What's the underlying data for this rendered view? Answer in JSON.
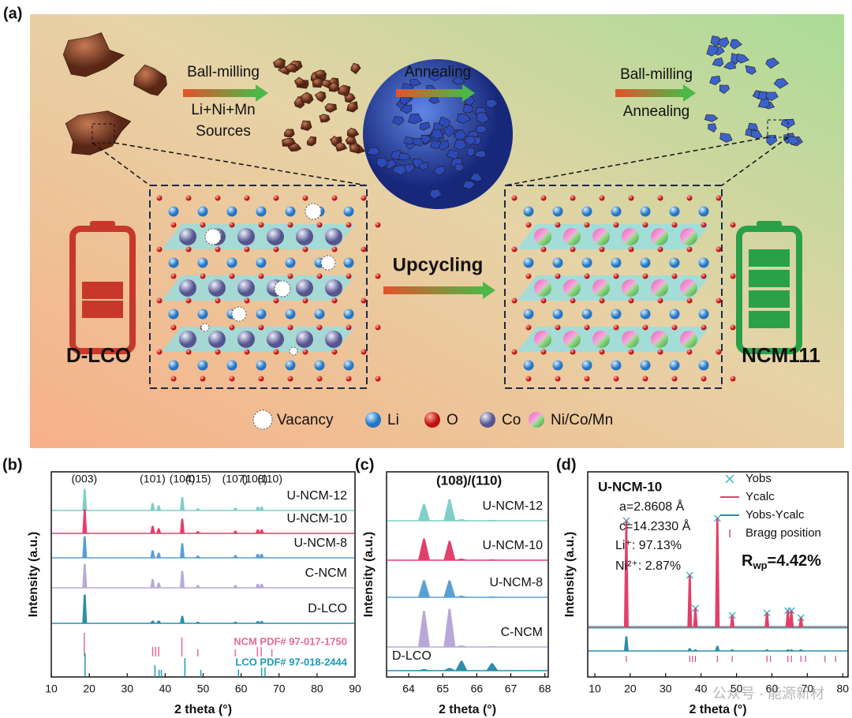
{
  "panel_a": {
    "label": "(a)",
    "steps": [
      {
        "lines": [
          "Ball-milling",
          "Li+Ni+Mn",
          "Sources"
        ]
      },
      {
        "lines": [
          "Annealing"
        ]
      },
      {
        "lines": [
          "Ball-milling",
          "Annealing"
        ]
      }
    ],
    "process": "Upcycling",
    "source": "D-LCO",
    "product": "NCM111",
    "legend": [
      "Vacancy",
      "Li",
      "O",
      "Co",
      "Ni/Co/Mn"
    ]
  },
  "chart_data": [
    {
      "type": "xrd",
      "panel_label": "(b)",
      "x_label": "2 theta (°)",
      "y_label": "Intensity (a.u.)",
      "xlim": [
        10,
        90
      ],
      "xticks": [
        10,
        20,
        30,
        40,
        50,
        60,
        70,
        80,
        90
      ],
      "x": [
        18.8,
        36.7,
        38.3,
        44.5,
        48.6,
        58.5,
        64.4,
        65.4
      ],
      "series": [
        {
          "name": "U-NCM-12",
          "color": "#7fcfc8",
          "values": [
            0.9,
            0.3,
            0.2,
            0.55,
            0.08,
            0.1,
            0.15,
            0.15
          ]
        },
        {
          "name": "U-NCM-10",
          "color": "#e0406a",
          "values": [
            1.0,
            0.3,
            0.2,
            0.6,
            0.08,
            0.1,
            0.15,
            0.15
          ]
        },
        {
          "name": "U-NCM-8",
          "color": "#5a9fd4",
          "values": [
            0.9,
            0.3,
            0.2,
            0.6,
            0.08,
            0.1,
            0.15,
            0.15
          ]
        },
        {
          "name": "C-NCM",
          "color": "#b8a8d8",
          "values": [
            1.0,
            0.35,
            0.2,
            0.7,
            0.1,
            0.1,
            0.15,
            0.15
          ]
        },
        {
          "name": "D-LCO",
          "color": "#2a8fa8",
          "values": [
            1.2,
            0.1,
            0.1,
            0.3,
            0.05,
            0.05,
            0.08,
            0.08
          ]
        }
      ],
      "peak_labels": [
        {
          "label": "(003)",
          "x": 18.7
        },
        {
          "label": "(101)",
          "x": 36.7
        },
        {
          "label": "(104)",
          "x": 44.5
        },
        {
          "label": "(015)",
          "x": 48.7
        },
        {
          "label": "(107)",
          "x": 58.4
        },
        {
          "label": "(108)",
          "x": 63.6
        },
        {
          "label": "(110)",
          "x": 67.6
        }
      ],
      "reference_patterns": [
        {
          "name": "NCM PDF# 97-017-1750",
          "color": "#e86a8f",
          "x": [
            18.7,
            36.7,
            37.5,
            38.3,
            44.4,
            48.6,
            58.5,
            64.3,
            65.3,
            68.1
          ],
          "values": [
            1,
            0.4,
            0.4,
            0.4,
            0.8,
            0.3,
            0.3,
            0.4,
            0.4,
            0.3
          ]
        },
        {
          "name": "LCO PDF# 97-018-2444",
          "color": "#1f9ab8",
          "x": [
            18.9,
            37.3,
            38.4,
            39.0,
            45.2,
            49.4,
            59.3,
            65.4,
            66.3
          ],
          "values": [
            1,
            0.5,
            0.3,
            0.3,
            0.8,
            0.3,
            0.3,
            0.4,
            0.4
          ]
        }
      ]
    },
    {
      "type": "xrd",
      "panel_label": "(c)",
      "x_label": "2 theta (°)",
      "y_label": "Intensity (a.u.)",
      "xlim": [
        63.35,
        68.1
      ],
      "xticks": [
        64,
        65,
        66,
        67,
        68
      ],
      "x": [
        64.45,
        65.2,
        65.55,
        66.45
      ],
      "series": [
        {
          "name": "U-NCM-12",
          "color": "#7fcfc8",
          "values": [
            0.7,
            0.9,
            0.05,
            0.02
          ]
        },
        {
          "name": "U-NCM-10",
          "color": "#e0406a",
          "values": [
            0.9,
            0.8,
            0.05,
            0.02
          ]
        },
        {
          "name": "U-NCM-8",
          "color": "#5a9fd4",
          "values": [
            0.7,
            0.7,
            0.05,
            0.02
          ]
        },
        {
          "name": "C-NCM",
          "color": "#b8a8d8",
          "values": [
            1.5,
            1.6,
            0.05,
            0.02
          ]
        },
        {
          "name": "D-LCO",
          "color": "#2a8fa8",
          "values": [
            0.05,
            0.1,
            0.4,
            0.3
          ]
        }
      ],
      "annotations": [
        "(108)/(110)"
      ]
    },
    {
      "type": "xrd",
      "panel_label": "(d)",
      "x_label": "2 theta (°)",
      "y_label": "Intensity (a.u.)",
      "xlim": [
        8,
        81.5
      ],
      "xticks": [
        10,
        20,
        30,
        40,
        50,
        60,
        70,
        80
      ],
      "x": [
        18.9,
        36.8,
        38.4,
        44.6,
        48.8,
        58.6,
        64.5,
        65.5,
        68.2
      ],
      "series": [
        {
          "name": "Yobs",
          "color": "#3ab8c8",
          "marker": "cross",
          "values": [
            4.5,
            2.2,
            0.8,
            4.6,
            0.5,
            0.6,
            0.7,
            0.7,
            0.4
          ]
        },
        {
          "name": "Ycalc",
          "color": "#e0406a",
          "marker": "line",
          "values": [
            4.5,
            2.2,
            0.8,
            4.6,
            0.5,
            0.6,
            0.7,
            0.7,
            0.4
          ]
        },
        {
          "name": "Yobs-Ycalc",
          "color": "#2a8fa8",
          "marker": "line",
          "values": [
            0.6,
            0.1,
            0.05,
            0.2,
            0.05,
            0.05,
            0.05,
            0.05,
            0.05
          ]
        }
      ],
      "reference_patterns": [
        {
          "name": "Bragg position",
          "color": "#c0508a",
          "x": [
            18.9,
            36.8,
            37.6,
            38.4,
            44.6,
            48.8,
            58.6,
            59.6,
            64.5,
            65.5,
            68.2,
            69.5,
            75.0,
            78.0
          ]
        }
      ],
      "annotations": [
        "U-NCM-10",
        "a=2.8608 Å",
        "c=14.2330 Å",
        "Li⁺: 97.13%",
        "Ni²⁺: 2.87%"
      ],
      "r_factor": {
        "symbol": "R",
        "subscript": "wp",
        "value": "=4.42%"
      }
    }
  ],
  "watermark": "公众号 · 能源新材"
}
